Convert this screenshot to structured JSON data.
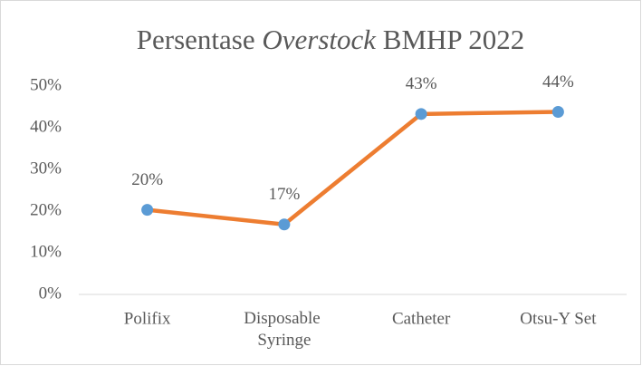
{
  "chart_data": {
    "type": "line",
    "title": [
      "Persentase",
      "Overstock",
      "BMHP 2022"
    ],
    "categories": [
      "Polifix",
      "Disposable Syringe",
      "Catheter",
      "Otsu-Y Set"
    ],
    "series": [
      {
        "name": "Overstock",
        "line_color": "#ed7d31",
        "marker_color": "#5b9bd5",
        "values": [
          20.3,
          16.8,
          43.3,
          43.8
        ],
        "value_labels": [
          "20%",
          "17%",
          "43%",
          "44%"
        ]
      }
    ],
    "ylim": [
      0,
      50
    ],
    "yticks": [
      {
        "value": 0,
        "label": "0%"
      },
      {
        "value": 10,
        "label": "10%"
      },
      {
        "value": 20,
        "label": "20%"
      },
      {
        "value": 30,
        "label": "30%"
      },
      {
        "value": 40,
        "label": "40%"
      },
      {
        "value": 50,
        "label": "50%"
      }
    ],
    "grid": false
  }
}
